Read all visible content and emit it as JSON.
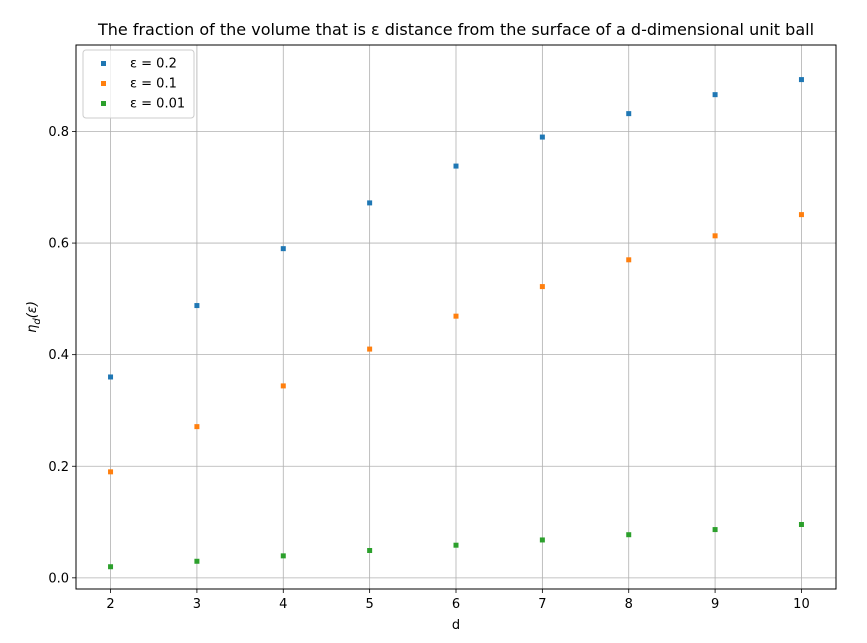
{
  "chart_data": {
    "type": "scatter",
    "title": "The fraction of the volume that is ε distance from the surface of a d-dimensional unit ball",
    "xlabel": "d",
    "ylabel": "η_d(ε)",
    "x": [
      2,
      3,
      4,
      5,
      6,
      7,
      8,
      9,
      10
    ],
    "xlim": [
      1.6,
      10.4
    ],
    "ylim": [
      -0.02,
      0.955
    ],
    "xticks": [
      "2",
      "3",
      "4",
      "5",
      "6",
      "7",
      "8",
      "9",
      "10"
    ],
    "yticks": [
      "0.0",
      "0.2",
      "0.4",
      "0.6",
      "0.8"
    ],
    "grid": true,
    "legend_position": "top-left",
    "series": [
      {
        "name": "ε = 0.2",
        "color": "#1f77b4",
        "values": [
          0.36,
          0.488,
          0.59,
          0.672,
          0.738,
          0.79,
          0.832,
          0.866,
          0.893
        ]
      },
      {
        "name": "ε = 0.1",
        "color": "#ff7f0e",
        "values": [
          0.19,
          0.271,
          0.344,
          0.41,
          0.469,
          0.522,
          0.57,
          0.613,
          0.651
        ]
      },
      {
        "name": "ε = 0.01",
        "color": "#2ca02c",
        "values": [
          0.0199,
          0.0297,
          0.0394,
          0.049,
          0.0585,
          0.0679,
          0.0773,
          0.0865,
          0.0956
        ]
      }
    ]
  }
}
